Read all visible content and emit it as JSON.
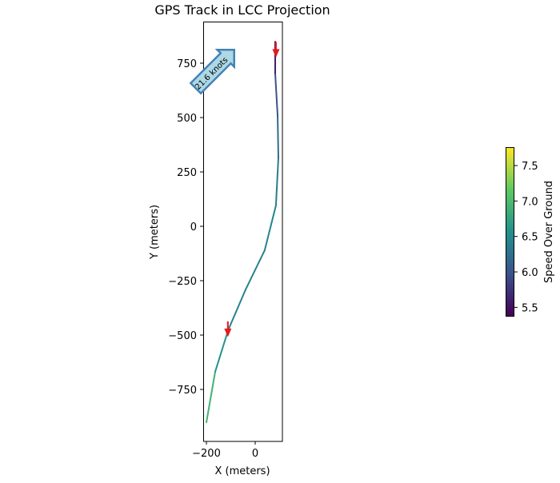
{
  "chart_data": {
    "type": "line",
    "title": "GPS Track in LCC Projection",
    "xlabel": "X (meters)",
    "ylabel": "Y (meters)",
    "xlim": [
      -213,
      111
    ],
    "ylim": [
      -989,
      941
    ],
    "xticks": [
      {
        "v": -200,
        "label": "−200"
      },
      {
        "v": 0,
        "label": "0"
      }
    ],
    "yticks": [
      {
        "v": 750,
        "label": "750"
      },
      {
        "v": 500,
        "label": "500"
      },
      {
        "v": 250,
        "label": "250"
      },
      {
        "v": 0,
        "label": "0"
      },
      {
        "v": -250,
        "label": "−250"
      },
      {
        "v": -500,
        "label": "−500"
      },
      {
        "v": -750,
        "label": "−750"
      }
    ],
    "track": {
      "x": [
        -200,
        -164,
        -111,
        -39,
        39,
        85,
        95,
        92,
        82,
        82
      ],
      "y": [
        -901,
        -669,
        -478,
        -290,
        -110,
        96,
        313,
        507,
        702,
        849
      ],
      "speed": [
        6.9,
        6.6,
        6.45,
        6.45,
        6.45,
        6.4,
        6.2,
        6.0,
        5.6
      ]
    },
    "direction_arrows": [
      {
        "x": -112,
        "y": -470,
        "dir": "down"
      },
      {
        "x": 85,
        "y": 815,
        "dir": "down"
      }
    ],
    "annotation": {
      "text": "21.6 knots",
      "x": -165,
      "y": 720,
      "angle": 45
    },
    "colorbar": {
      "label": "Speed Over Ground",
      "range": [
        5.38,
        7.76
      ],
      "ticks": [
        {
          "v": 7.5,
          "label": "7.5"
        },
        {
          "v": 7.0,
          "label": "7.0"
        },
        {
          "v": 6.5,
          "label": "6.5"
        },
        {
          "v": 6.0,
          "label": "6.0"
        },
        {
          "v": 5.5,
          "label": "5.5"
        }
      ],
      "colormap": "viridis"
    },
    "colors": {
      "arrow": "#e41a1c",
      "annotation_fill": "#add8e6",
      "annotation_edge": "#4682b4"
    }
  }
}
